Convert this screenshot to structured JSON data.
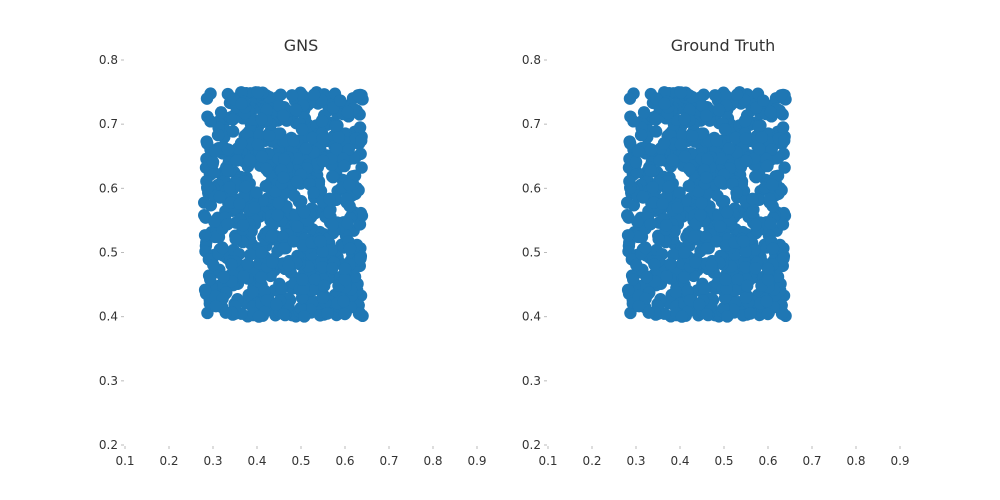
{
  "chart_data": [
    {
      "type": "scatter",
      "title": "GNS",
      "xlabel": "",
      "ylabel": "",
      "xlim": [
        0.1,
        0.9
      ],
      "ylim": [
        0.2,
        0.8
      ],
      "xticks": [
        "0.1",
        "0.2",
        "0.3",
        "0.4",
        "0.5",
        "0.6",
        "0.7",
        "0.8",
        "0.9"
      ],
      "yticks": [
        "0.2",
        "0.3",
        "0.4",
        "0.5",
        "0.6",
        "0.7",
        "0.8"
      ],
      "grid": false,
      "marker_color": "#1f77b4",
      "particle_region": {
        "x": [
          0.28,
          0.64
        ],
        "y": [
          0.4,
          0.75
        ]
      }
    },
    {
      "type": "scatter",
      "title": "Ground Truth",
      "xlabel": "",
      "ylabel": "",
      "xlim": [
        0.1,
        0.9
      ],
      "ylim": [
        0.2,
        0.8
      ],
      "xticks": [
        "0.1",
        "0.2",
        "0.3",
        "0.4",
        "0.5",
        "0.6",
        "0.7",
        "0.8",
        "0.9"
      ],
      "yticks": [
        "0.2",
        "0.3",
        "0.4",
        "0.5",
        "0.6",
        "0.7",
        "0.8"
      ],
      "grid": false,
      "marker_color": "#1f77b4",
      "particle_region": {
        "x": [
          0.28,
          0.64
        ],
        "y": [
          0.4,
          0.75
        ]
      }
    }
  ]
}
